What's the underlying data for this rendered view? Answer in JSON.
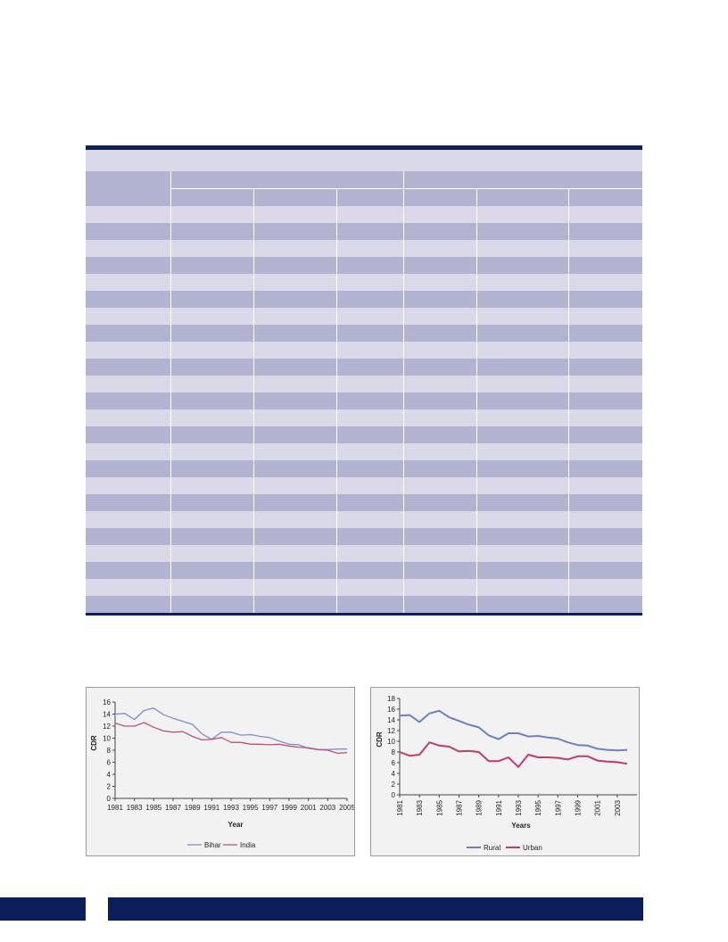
{
  "table": {
    "columns": 7,
    "body_rows": 24
  },
  "charts": {
    "left": {
      "legend": [
        "Bihar",
        "India"
      ]
    },
    "right": {
      "legend": [
        "Rural",
        "Urban"
      ]
    }
  },
  "chart_data": [
    {
      "type": "line",
      "x": [
        1981,
        1982,
        1983,
        1984,
        1985,
        1986,
        1987,
        1988,
        1989,
        1990,
        1991,
        1992,
        1993,
        1994,
        1995,
        1996,
        1997,
        1998,
        1999,
        2000,
        2001,
        2002,
        2003,
        2004,
        2005
      ],
      "series": [
        {
          "name": "Bihar",
          "color": "#7f8ec8",
          "values": [
            14,
            14.1,
            13.1,
            14.6,
            15,
            13.9,
            13.3,
            12.8,
            12.3,
            10.7,
            9.8,
            11,
            11,
            10.5,
            10.6,
            10.3,
            10.1,
            9.5,
            9,
            8.9,
            8.3,
            8.1,
            8.1,
            8.2,
            8.2
          ]
        },
        {
          "name": "India",
          "color": "#c0507a",
          "values": [
            12.5,
            12,
            12,
            12.6,
            11.8,
            11.2,
            11,
            11.1,
            10.3,
            9.7,
            9.8,
            10.1,
            9.3,
            9.3,
            9,
            9,
            8.9,
            9,
            8.7,
            8.5,
            8.4,
            8.1,
            8,
            7.5,
            7.6
          ]
        }
      ],
      "xlabel": "Year",
      "ylabel": "CDR",
      "xticks": [
        1981,
        1983,
        1985,
        1987,
        1989,
        1991,
        1993,
        1995,
        1997,
        1999,
        2001,
        2003,
        2005
      ],
      "ylim": [
        0,
        16
      ],
      "yticks": [
        0,
        2,
        4,
        6,
        8,
        10,
        12,
        14,
        16
      ],
      "grid": false,
      "legend_position": "bottom"
    },
    {
      "type": "line",
      "x": [
        1981,
        1982,
        1983,
        1984,
        1985,
        1986,
        1987,
        1988,
        1989,
        1990,
        1991,
        1992,
        1993,
        1994,
        1995,
        1996,
        1997,
        1998,
        1999,
        2000,
        2001,
        2002,
        2003,
        2004
      ],
      "series": [
        {
          "name": "Rural",
          "color": "#6c7fc4",
          "values": [
            14.8,
            14.9,
            13.6,
            15.2,
            15.7,
            14.5,
            13.8,
            13.1,
            12.6,
            11.1,
            10.4,
            11.5,
            11.5,
            10.9,
            11,
            10.7,
            10.5,
            9.8,
            9.3,
            9.2,
            8.6,
            8.4,
            8.3,
            8.4
          ]
        },
        {
          "name": "Urban",
          "color": "#c03a6a",
          "values": [
            8,
            7.3,
            7.5,
            9.8,
            9.2,
            9,
            8.1,
            8.2,
            8,
            6.3,
            6.3,
            7,
            5.2,
            7.5,
            7,
            7,
            6.9,
            6.6,
            7.2,
            7.2,
            6.4,
            6.2,
            6.1,
            5.8
          ]
        }
      ],
      "xlabel": "Years",
      "ylabel": "CDR",
      "xticks": [
        1981,
        1983,
        1985,
        1987,
        1989,
        1991,
        1993,
        1995,
        1997,
        1999,
        2001,
        2003
      ],
      "ylim": [
        0,
        18
      ],
      "yticks": [
        0,
        2,
        4,
        6,
        8,
        10,
        12,
        14,
        16,
        18
      ],
      "grid": false,
      "legend_position": "bottom"
    }
  ]
}
